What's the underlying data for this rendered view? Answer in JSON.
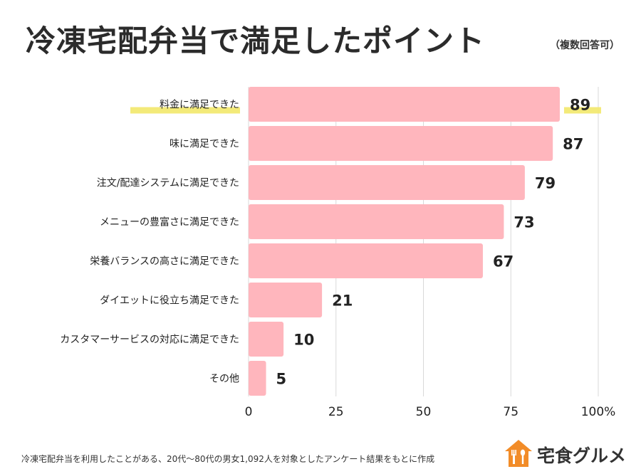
{
  "header": {
    "title": "冷凍宅配弁当で満足したポイント",
    "subtitle": "（複数回答可）"
  },
  "chart_data": {
    "type": "bar",
    "orientation": "horizontal",
    "categories": [
      "料金に満足できた",
      "味に満足できた",
      "注文/配達システムに満足できた",
      "メニューの豊富さに満足できた",
      "栄養バランスの高さに満足できた",
      "ダイエットに役立ち満足できた",
      "カスタマーサービスの対応に満足できた",
      "その他"
    ],
    "values": [
      89,
      87,
      79,
      73,
      67,
      21,
      10,
      5
    ],
    "value_labels": [
      "89",
      "87",
      "79",
      "73",
      "67",
      "21",
      "10",
      "5"
    ],
    "xlim": [
      0,
      100
    ],
    "x_ticks": [
      "0",
      "25",
      "50",
      "75",
      "100%"
    ],
    "grid": "vertical",
    "highlight_index": 0,
    "colors": {
      "bar": "#ffb6bd",
      "highlight": "#f2e86a",
      "grid": "#d9d9d9"
    }
  },
  "footer": {
    "note": "冷凍宅配弁当を利用したことがある、20代〜80代の男女1,092人を対象としたアンケート結果をもとに作成",
    "logo_text": "宅食グルメ",
    "logo_color": "#f28c28"
  }
}
